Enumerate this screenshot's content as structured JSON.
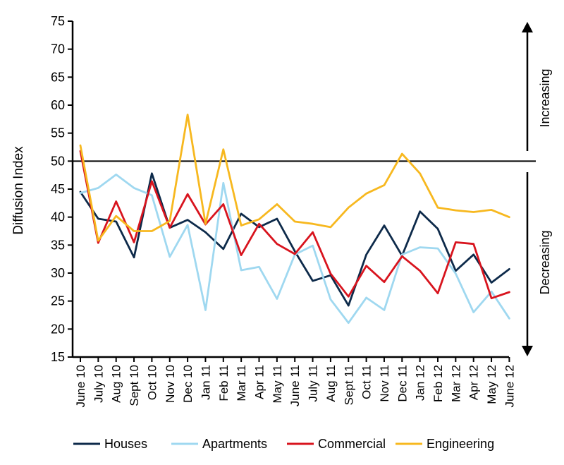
{
  "chart_data": {
    "type": "line",
    "ylabel": "Diffusion Index",
    "ylim": [
      15,
      75
    ],
    "yticks": [
      15,
      20,
      25,
      30,
      35,
      40,
      45,
      50,
      55,
      60,
      65,
      70,
      75
    ],
    "reference_line": 50,
    "grid": false,
    "legend_position": "bottom",
    "categories": [
      "June 10",
      "July 10",
      "Aug 10",
      "Sept 10",
      "Oct 10",
      "Nov 10",
      "Dec 10",
      "Jan 11",
      "Feb 11",
      "Mar 11",
      "Apr 11",
      "May 11",
      "June 11",
      "July 11",
      "Aug 11",
      "Sept 11",
      "Oct 11",
      "Nov 11",
      "Dec 11",
      "Jan 12",
      "Feb 12",
      "Mar 12",
      "Apr 12",
      "May 12",
      "June 12"
    ],
    "annotations": {
      "upper": "Increasing",
      "lower": "Decreasing"
    },
    "series": [
      {
        "name": "Houses",
        "color": "#0d2a4a",
        "values": [
          44.5,
          39.7,
          39.2,
          32.8,
          47.8,
          38.1,
          39.5,
          37.3,
          34.3,
          40.6,
          38.2,
          39.7,
          33.9,
          28.6,
          29.6,
          24.2,
          33.3,
          38.5,
          33.1,
          41.0,
          37.9,
          30.4,
          33.3,
          28.3,
          30.7
        ]
      },
      {
        "name": "Apartments",
        "color": "#9fd8f0",
        "values": [
          44.3,
          45.2,
          47.6,
          45.2,
          43.9,
          32.9,
          38.6,
          23.4,
          46.1,
          30.5,
          31.1,
          25.4,
          33.3,
          34.9,
          25.3,
          21.1,
          25.6,
          23.4,
          33.3,
          34.6,
          34.4,
          29.9,
          23.0,
          26.7,
          21.9
        ]
      },
      {
        "name": "Commercial",
        "color": "#d8141e",
        "values": [
          51.8,
          35.4,
          42.8,
          35.5,
          46.4,
          38.1,
          44.1,
          38.7,
          42.3,
          33.2,
          38.8,
          35.2,
          33.4,
          37.3,
          29.9,
          25.8,
          31.3,
          28.4,
          33.0,
          30.4,
          26.4,
          35.5,
          35.2,
          25.5,
          26.6
        ]
      },
      {
        "name": "Engineering",
        "color": "#f7b81f",
        "values": [
          52.8,
          35.8,
          40.2,
          37.5,
          37.5,
          39.3,
          58.3,
          38.8,
          52.1,
          38.5,
          39.6,
          42.3,
          39.2,
          38.8,
          38.2,
          41.7,
          44.2,
          45.7,
          51.3,
          47.8,
          41.7,
          41.2,
          40.9,
          41.3,
          40.0
        ]
      }
    ]
  }
}
